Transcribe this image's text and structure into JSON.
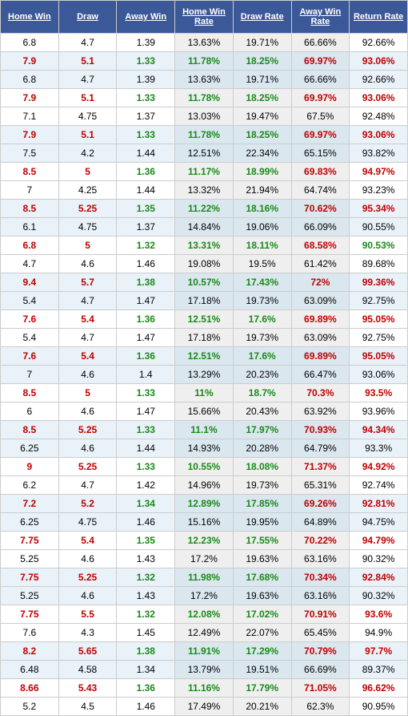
{
  "headers": [
    "Home Win",
    "Draw",
    "Away Win",
    "Home Win Rate",
    "Draw Rate",
    "Away Win Rate",
    "Return Rate"
  ],
  "rows": [
    {
      "z": 0,
      "hl": 0,
      "c": [
        "6.8",
        "4.7",
        "1.39",
        "13.63%",
        "19.71%",
        "66.66%",
        "92.66%"
      ]
    },
    {
      "z": 1,
      "hl": 1,
      "c": [
        "7.9",
        "5.1",
        "1.33",
        "11.78%",
        "18.25%",
        "69.97%",
        "93.06%"
      ]
    },
    {
      "z": 1,
      "hl": 0,
      "c": [
        "6.8",
        "4.7",
        "1.39",
        "13.63%",
        "19.71%",
        "66.66%",
        "92.66%"
      ]
    },
    {
      "z": 0,
      "hl": 1,
      "c": [
        "7.9",
        "5.1",
        "1.33",
        "11.78%",
        "18.25%",
        "69.97%",
        "93.06%"
      ]
    },
    {
      "z": 0,
      "hl": 0,
      "c": [
        "7.1",
        "4.75",
        "1.37",
        "13.03%",
        "19.47%",
        "67.5%",
        "92.48%"
      ]
    },
    {
      "z": 1,
      "hl": 1,
      "c": [
        "7.9",
        "5.1",
        "1.33",
        "11.78%",
        "18.25%",
        "69.97%",
        "93.06%"
      ]
    },
    {
      "z": 1,
      "hl": 0,
      "c": [
        "7.5",
        "4.2",
        "1.44",
        "12.51%",
        "22.34%",
        "65.15%",
        "93.82%"
      ]
    },
    {
      "z": 0,
      "hl": 1,
      "c": [
        "8.5",
        "5",
        "1.36",
        "11.17%",
        "18.99%",
        "69.83%",
        "94.97%"
      ]
    },
    {
      "z": 0,
      "hl": 0,
      "c": [
        "7",
        "4.25",
        "1.44",
        "13.32%",
        "21.94%",
        "64.74%",
        "93.23%"
      ]
    },
    {
      "z": 1,
      "hl": 1,
      "c": [
        "8.5",
        "5.25",
        "1.35",
        "11.22%",
        "18.16%",
        "70.62%",
        "95.34%"
      ]
    },
    {
      "z": 1,
      "hl": 0,
      "c": [
        "6.1",
        "4.75",
        "1.37",
        "14.84%",
        "19.06%",
        "66.09%",
        "90.55%"
      ]
    },
    {
      "z": 0,
      "hl": 1,
      "c": [
        "6.8",
        "5",
        "1.32",
        "13.31%",
        "18.11%",
        "68.58%",
        "90.53%"
      ],
      "lastGreen": 1
    },
    {
      "z": 0,
      "hl": 0,
      "c": [
        "4.7",
        "4.6",
        "1.46",
        "19.08%",
        "19.5%",
        "61.42%",
        "89.68%"
      ]
    },
    {
      "z": 1,
      "hl": 1,
      "c": [
        "9.4",
        "5.7",
        "1.38",
        "10.57%",
        "17.43%",
        "72%",
        "99.36%"
      ]
    },
    {
      "z": 1,
      "hl": 0,
      "c": [
        "5.4",
        "4.7",
        "1.47",
        "17.18%",
        "19.73%",
        "63.09%",
        "92.75%"
      ]
    },
    {
      "z": 0,
      "hl": 1,
      "c": [
        "7.6",
        "5.4",
        "1.36",
        "12.51%",
        "17.6%",
        "69.89%",
        "95.05%"
      ]
    },
    {
      "z": 0,
      "hl": 0,
      "c": [
        "5.4",
        "4.7",
        "1.47",
        "17.18%",
        "19.73%",
        "63.09%",
        "92.75%"
      ]
    },
    {
      "z": 1,
      "hl": 1,
      "c": [
        "7.6",
        "5.4",
        "1.36",
        "12.51%",
        "17.6%",
        "69.89%",
        "95.05%"
      ]
    },
    {
      "z": 1,
      "hl": 0,
      "c": [
        "7",
        "4.6",
        "1.4",
        "13.29%",
        "20.23%",
        "66.47%",
        "93.06%"
      ]
    },
    {
      "z": 0,
      "hl": 1,
      "c": [
        "8.5",
        "5",
        "1.33",
        "11%",
        "18.7%",
        "70.3%",
        "93.5%"
      ]
    },
    {
      "z": 0,
      "hl": 0,
      "c": [
        "6",
        "4.6",
        "1.47",
        "15.66%",
        "20.43%",
        "63.92%",
        "93.96%"
      ]
    },
    {
      "z": 1,
      "hl": 1,
      "c": [
        "8.5",
        "5.25",
        "1.33",
        "11.1%",
        "17.97%",
        "70.93%",
        "94.34%"
      ]
    },
    {
      "z": 1,
      "hl": 0,
      "c": [
        "6.25",
        "4.6",
        "1.44",
        "14.93%",
        "20.28%",
        "64.79%",
        "93.3%"
      ]
    },
    {
      "z": 0,
      "hl": 1,
      "c": [
        "9",
        "5.25",
        "1.33",
        "10.55%",
        "18.08%",
        "71.37%",
        "94.92%"
      ]
    },
    {
      "z": 0,
      "hl": 0,
      "c": [
        "6.2",
        "4.7",
        "1.42",
        "14.96%",
        "19.73%",
        "65.31%",
        "92.74%"
      ]
    },
    {
      "z": 1,
      "hl": 1,
      "c": [
        "7.2",
        "5.2",
        "1.34",
        "12.89%",
        "17.85%",
        "69.26%",
        "92.81%"
      ]
    },
    {
      "z": 1,
      "hl": 0,
      "c": [
        "6.25",
        "4.75",
        "1.46",
        "15.16%",
        "19.95%",
        "64.89%",
        "94.75%"
      ]
    },
    {
      "z": 0,
      "hl": 1,
      "c": [
        "7.75",
        "5.4",
        "1.35",
        "12.23%",
        "17.55%",
        "70.22%",
        "94.79%"
      ]
    },
    {
      "z": 0,
      "hl": 0,
      "c": [
        "5.25",
        "4.6",
        "1.43",
        "17.2%",
        "19.63%",
        "63.16%",
        "90.32%"
      ]
    },
    {
      "z": 1,
      "hl": 1,
      "c": [
        "7.75",
        "5.25",
        "1.32",
        "11.98%",
        "17.68%",
        "70.34%",
        "92.84%"
      ]
    },
    {
      "z": 1,
      "hl": 0,
      "c": [
        "5.25",
        "4.6",
        "1.43",
        "17.2%",
        "19.63%",
        "63.16%",
        "90.32%"
      ]
    },
    {
      "z": 0,
      "hl": 1,
      "c": [
        "7.75",
        "5.5",
        "1.32",
        "12.08%",
        "17.02%",
        "70.91%",
        "93.6%"
      ]
    },
    {
      "z": 0,
      "hl": 0,
      "c": [
        "7.6",
        "4.3",
        "1.45",
        "12.49%",
        "22.07%",
        "65.45%",
        "94.9%"
      ]
    },
    {
      "z": 1,
      "hl": 1,
      "c": [
        "8.2",
        "5.65",
        "1.38",
        "11.91%",
        "17.29%",
        "70.79%",
        "97.7%"
      ]
    },
    {
      "z": 1,
      "hl": 0,
      "c": [
        "6.48",
        "4.58",
        "1.34",
        "13.79%",
        "19.51%",
        "66.69%",
        "89.37%"
      ]
    },
    {
      "z": 0,
      "hl": 1,
      "c": [
        "8.66",
        "5.43",
        "1.36",
        "11.16%",
        "17.79%",
        "71.05%",
        "96.62%"
      ]
    },
    {
      "z": 0,
      "hl": 0,
      "c": [
        "5.2",
        "4.5",
        "1.46",
        "17.49%",
        "20.21%",
        "62.3%",
        "90.95%"
      ]
    }
  ]
}
